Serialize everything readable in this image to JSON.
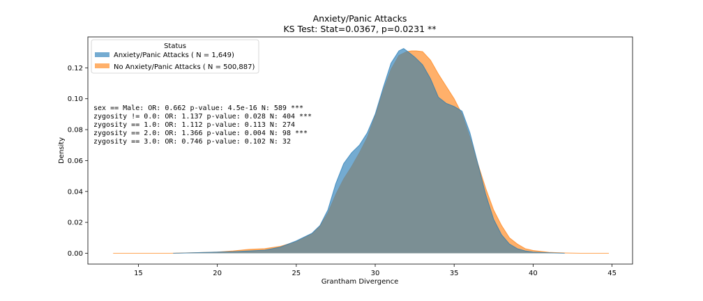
{
  "chart_data": {
    "type": "area",
    "title": "Anxiety/Panic Attacks",
    "subtitle": "KS Test: Stat=0.0367, p=0.0231 **",
    "xlabel": "Grantham Divergence",
    "ylabel": "Density",
    "xlim": [
      11.8,
      46.3
    ],
    "ylim": [
      -0.007,
      0.14
    ],
    "xticks": [
      "15",
      "20",
      "25",
      "30",
      "35",
      "40",
      "45"
    ],
    "yticks": [
      "0.00",
      "0.02",
      "0.04",
      "0.06",
      "0.08",
      "0.10",
      "0.12"
    ],
    "legend": {
      "title": "Status",
      "placement": "top-left",
      "entries": [
        "Anxiety/Panic Attacks ( N = 1,649)",
        "No Anxiety/Panic Attacks ( N = 500,887)"
      ]
    },
    "annotations": [
      "sex == Male: OR: 0.662 p-value: 4.5e-16 N: 589 ***",
      "zygosity != 0.0: OR: 1.137 p-value: 0.028 N: 404 ***",
      "zygosity == 1.0: OR: 1.112 p-value: 0.113 N: 274",
      "zygosity == 2.0: OR: 1.366 p-value: 0.004 N: 98 ***",
      "zygosity == 3.0: OR: 0.746 p-value: 0.102 N: 32"
    ],
    "colors": {
      "series1": "#1f77b4",
      "series2": "#ff7f0e",
      "overlap": "#7b8f94"
    },
    "series": [
      {
        "name": "Anxiety/Panic Attacks ( N = 1,649)",
        "x": [
          17.2,
          19.0,
          20.0,
          21.0,
          22.0,
          23.0,
          24.0,
          25.0,
          26.0,
          26.5,
          27.0,
          27.5,
          28.0,
          28.5,
          29.0,
          29.5,
          30.0,
          30.5,
          31.0,
          31.5,
          31.8,
          32.0,
          32.5,
          33.0,
          33.5,
          34.0,
          34.5,
          35.0,
          35.5,
          36.0,
          36.5,
          37.0,
          37.5,
          38.0,
          38.5,
          39.0,
          39.5,
          40.0,
          41.0,
          42.0
        ],
        "y": [
          0.0,
          0.0005,
          0.0008,
          0.001,
          0.0015,
          0.002,
          0.004,
          0.008,
          0.013,
          0.018,
          0.028,
          0.045,
          0.058,
          0.065,
          0.07,
          0.078,
          0.09,
          0.107,
          0.123,
          0.131,
          0.1325,
          0.131,
          0.127,
          0.122,
          0.113,
          0.101,
          0.097,
          0.095,
          0.092,
          0.078,
          0.058,
          0.038,
          0.022,
          0.012,
          0.006,
          0.003,
          0.0015,
          0.0008,
          0.0003,
          0.0
        ]
      },
      {
        "name": "No Anxiety/Panic Attacks ( N = 500,887)",
        "x": [
          13.4,
          17.0,
          19.0,
          20.0,
          21.0,
          22.0,
          23.0,
          24.0,
          25.0,
          26.0,
          26.5,
          27.0,
          27.5,
          28.0,
          28.5,
          29.0,
          29.5,
          30.0,
          30.5,
          31.0,
          31.5,
          32.0,
          32.3,
          32.6,
          33.0,
          33.5,
          34.0,
          34.5,
          35.0,
          35.5,
          36.0,
          36.5,
          37.0,
          37.5,
          38.0,
          38.5,
          39.0,
          39.5,
          40.0,
          41.0,
          42.0,
          43.0,
          44.8
        ],
        "y": [
          0.0,
          0.0,
          0.0005,
          0.0008,
          0.0015,
          0.0025,
          0.003,
          0.0045,
          0.0075,
          0.0125,
          0.0175,
          0.026,
          0.038,
          0.048,
          0.056,
          0.065,
          0.075,
          0.089,
          0.105,
          0.119,
          0.128,
          0.1305,
          0.131,
          0.131,
          0.1305,
          0.125,
          0.116,
          0.108,
          0.1,
          0.09,
          0.075,
          0.058,
          0.042,
          0.028,
          0.018,
          0.01,
          0.006,
          0.003,
          0.0018,
          0.0006,
          0.0002,
          0.0,
          0.0
        ]
      }
    ]
  }
}
